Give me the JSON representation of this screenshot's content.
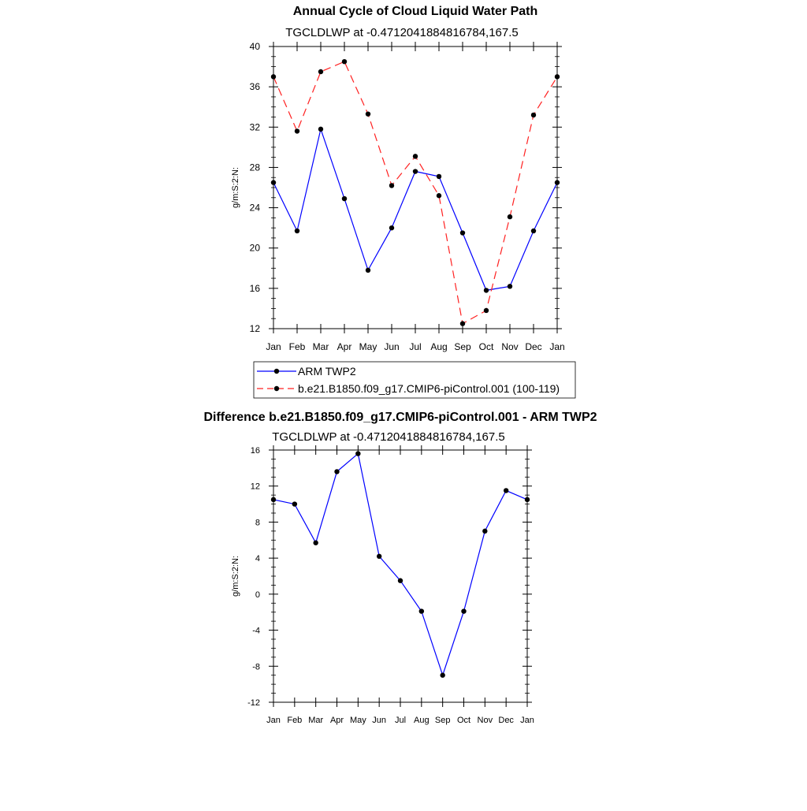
{
  "colors": {
    "obs": "#0000ff",
    "model": "#ff2020",
    "diff": "#0000ff",
    "marker": "#000000",
    "frame": "#000000"
  },
  "chart_data": [
    {
      "type": "line",
      "title": "Annual Cycle of Cloud Liquid Water Path",
      "subtitle": "TGCLDLWP at -0.4712041884816784,167.5",
      "xlabel": "",
      "ylabel": "g/m:S:2:N:",
      "ylim": [
        12,
        40
      ],
      "yticks": [
        "12",
        "16",
        "20",
        "24",
        "28",
        "32",
        "36",
        "40"
      ],
      "categories": [
        "Jan",
        "Feb",
        "Mar",
        "Apr",
        "May",
        "Jun",
        "Jul",
        "Aug",
        "Sep",
        "Oct",
        "Nov",
        "Dec",
        "Jan"
      ],
      "series": [
        {
          "name": "ARM TWP2",
          "style": "solid",
          "color_key": "obs",
          "values": [
            26.5,
            21.7,
            31.8,
            24.9,
            17.8,
            22.0,
            27.6,
            27.1,
            21.5,
            15.8,
            16.2,
            21.7,
            26.5
          ]
        },
        {
          "name": "b.e21.B1850.f09_g17.CMIP6-piControl.001 (100-119)",
          "style": "dashed",
          "color_key": "model",
          "values": [
            37.0,
            31.6,
            37.5,
            38.5,
            33.3,
            26.2,
            29.1,
            25.2,
            12.5,
            13.8,
            23.1,
            33.2,
            37.0
          ]
        }
      ],
      "legend": {
        "placement": "below",
        "entries": [
          "ARM TWP2",
          "b.e21.B1850.f09_g17.CMIP6-piControl.001 (100-119)"
        ]
      }
    },
    {
      "type": "line",
      "title": "Difference b.e21.B1850.f09_g17.CMIP6-piControl.001 - ARM TWP2",
      "subtitle": "TGCLDLWP at -0.4712041884816784,167.5",
      "xlabel": "",
      "ylabel": "g/m:S:2:N:",
      "ylim": [
        -12,
        16
      ],
      "yticks": [
        "-12",
        "-8",
        "-4",
        "0",
        "4",
        "8",
        "12",
        "16"
      ],
      "categories": [
        "Jan",
        "Feb",
        "Mar",
        "Apr",
        "May",
        "Jun",
        "Jul",
        "Aug",
        "Sep",
        "Oct",
        "Nov",
        "Dec",
        "Jan"
      ],
      "series": [
        {
          "name": "Difference",
          "style": "solid",
          "color_key": "diff",
          "values": [
            10.5,
            10.0,
            5.7,
            13.6,
            15.6,
            4.2,
            1.5,
            -1.9,
            -9.0,
            -1.9,
            7.0,
            11.5,
            10.5
          ]
        }
      ]
    }
  ]
}
